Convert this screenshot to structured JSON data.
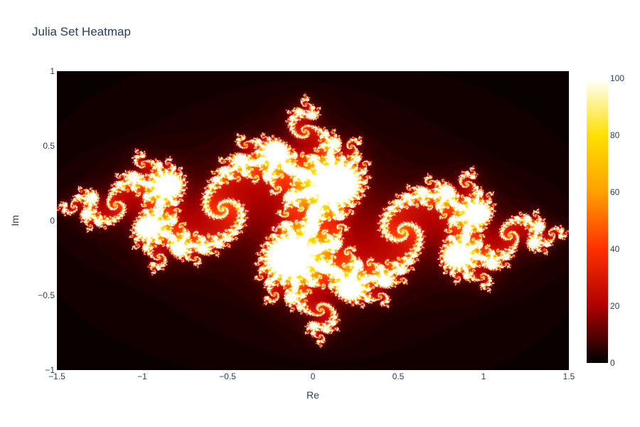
{
  "chart_data": {
    "type": "heatmap",
    "title": "Julia Set Heatmap",
    "xlabel": "Re",
    "ylabel": "Im",
    "xlim": [
      -1.5,
      1.5
    ],
    "ylim": [
      -1,
      1
    ],
    "x_ticks": [
      -1.5,
      -1,
      -0.5,
      0,
      0.5,
      1,
      1.5
    ],
    "x_tick_labels": [
      "−1.5",
      "−1",
      "−0.5",
      "0",
      "0.5",
      "1",
      "1.5"
    ],
    "y_ticks": [
      -1,
      -0.5,
      0,
      0.5,
      1
    ],
    "y_tick_labels": [
      "−1",
      "−0.5",
      "0",
      "0.5",
      "1"
    ],
    "colorbar": {
      "range": [
        0,
        100
      ],
      "ticks": [
        0,
        20,
        40,
        60,
        80,
        100
      ],
      "tick_labels": [
        "0",
        "20",
        "40",
        "60",
        "80",
        "100"
      ]
    },
    "colorscale": [
      "#000000",
      "#b00000",
      "#ff3000",
      "#ffa000",
      "#ffe000",
      "#ffffff"
    ],
    "julia_constant": {
      "re": -0.8,
      "im": 0.156
    },
    "max_iterations": 100,
    "grid": false,
    "legend": "colorbar-right"
  }
}
